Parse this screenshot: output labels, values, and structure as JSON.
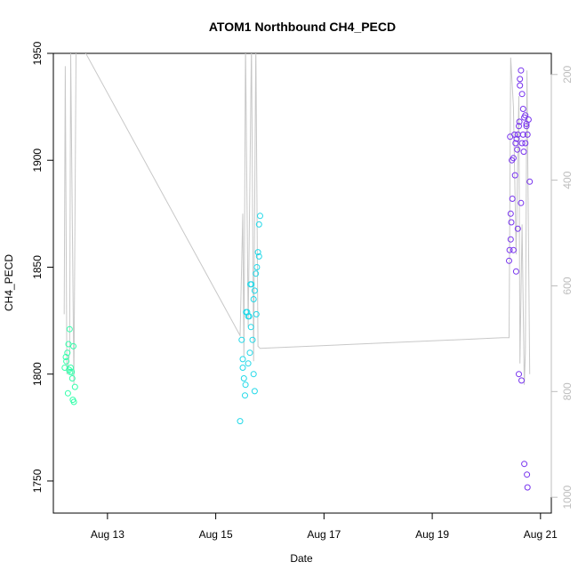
{
  "chart_data": {
    "type": "scatter",
    "title": "ATOM1 Northbound CH4_PECD",
    "xlabel": "Date",
    "ylabel": "CH4_PECD",
    "xlim": [
      12.0,
      21.2
    ],
    "ylim": [
      1735,
      1950
    ],
    "x_ticks": [
      {
        "value": 13,
        "label": "Aug 13"
      },
      {
        "value": 15,
        "label": "Aug 15"
      },
      {
        "value": 17,
        "label": "Aug 17"
      },
      {
        "value": 19,
        "label": "Aug 19"
      },
      {
        "value": 21,
        "label": "Aug 21"
      }
    ],
    "y_ticks": [
      1750,
      1800,
      1850,
      1900,
      1950
    ],
    "y2_range": [
      1030,
      160
    ],
    "y2_ticks": [
      200,
      400,
      600,
      800,
      1000
    ],
    "grid": false,
    "line_color": "#c8c8c8",
    "secondary_line": [
      [
        12.2,
        1828
      ],
      [
        12.22,
        1944
      ],
      [
        12.25,
        1800
      ],
      [
        12.3,
        1810
      ],
      [
        12.32,
        1950
      ],
      [
        12.38,
        1795
      ],
      [
        12.42,
        1955
      ],
      [
        12.6,
        1950
      ],
      [
        15.45,
        1818
      ],
      [
        15.5,
        1875
      ],
      [
        15.52,
        1808
      ],
      [
        15.55,
        1955
      ],
      [
        15.6,
        1822
      ],
      [
        15.66,
        1955
      ],
      [
        15.7,
        1806
      ],
      [
        15.74,
        1955
      ],
      [
        15.78,
        1813
      ],
      [
        15.82,
        1812
      ],
      [
        20.3,
        1817
      ],
      [
        20.42,
        1817
      ],
      [
        20.45,
        1948
      ],
      [
        20.5,
        1925
      ],
      [
        20.55,
        1856
      ],
      [
        20.6,
        1930
      ],
      [
        20.62,
        1805
      ],
      [
        20.66,
        1870
      ],
      [
        20.7,
        1795
      ],
      [
        20.72,
        1810
      ],
      [
        20.75,
        1942
      ],
      [
        20.8,
        1800
      ]
    ],
    "series": [
      {
        "color": "#33ffaa",
        "x": [
          12.21,
          12.24,
          12.26,
          12.28,
          12.3,
          12.32,
          12.34,
          12.36,
          12.38,
          12.4,
          12.23,
          12.29,
          12.31,
          12.35,
          12.37,
          12.27
        ],
        "y": [
          1803,
          1806,
          1810,
          1814,
          1821,
          1803,
          1801,
          1788,
          1787,
          1794,
          1808,
          1802,
          1801,
          1798,
          1813,
          1791
        ]
      },
      {
        "color": "#22d8e8",
        "x": [
          15.45,
          15.48,
          15.5,
          15.52,
          15.54,
          15.56,
          15.58,
          15.6,
          15.62,
          15.64,
          15.66,
          15.68,
          15.7,
          15.72,
          15.74,
          15.76,
          15.78,
          15.8,
          15.82,
          15.6,
          15.65,
          15.7,
          15.75,
          15.8,
          15.5,
          15.55,
          15.63,
          15.72
        ],
        "y": [
          1778,
          1816,
          1803,
          1798,
          1790,
          1829,
          1829,
          1827,
          1827,
          1842,
          1842,
          1816,
          1835,
          1839,
          1847,
          1850,
          1857,
          1870,
          1874,
          1805,
          1822,
          1800,
          1828,
          1855,
          1807,
          1795,
          1810,
          1792
        ]
      },
      {
        "color": "#7733ee",
        "x": [
          20.42,
          20.43,
          20.45,
          20.46,
          20.48,
          20.5,
          20.52,
          20.54,
          20.56,
          20.58,
          20.6,
          20.62,
          20.64,
          20.66,
          20.68,
          20.7,
          20.72,
          20.74,
          20.76,
          20.78,
          20.8,
          20.45,
          20.5,
          20.55,
          20.6,
          20.65,
          20.7,
          20.75,
          20.62,
          20.66,
          20.68,
          20.72,
          20.64,
          20.58,
          20.74,
          20.44,
          20.47,
          20.53,
          20.57,
          20.61,
          20.69,
          20.76
        ],
        "y": [
          1853,
          1858,
          1863,
          1871,
          1882,
          1901,
          1912,
          1908,
          1910,
          1912,
          1916,
          1935,
          1942,
          1931,
          1924,
          1920,
          1921,
          1917,
          1912,
          1919,
          1890,
          1875,
          1858,
          1848,
          1800,
          1797,
          1758,
          1753,
          1938,
          1908,
          1912,
          1908,
          1880,
          1868,
          1916,
          1911,
          1900,
          1893,
          1905,
          1918,
          1904,
          1747
        ]
      }
    ]
  }
}
